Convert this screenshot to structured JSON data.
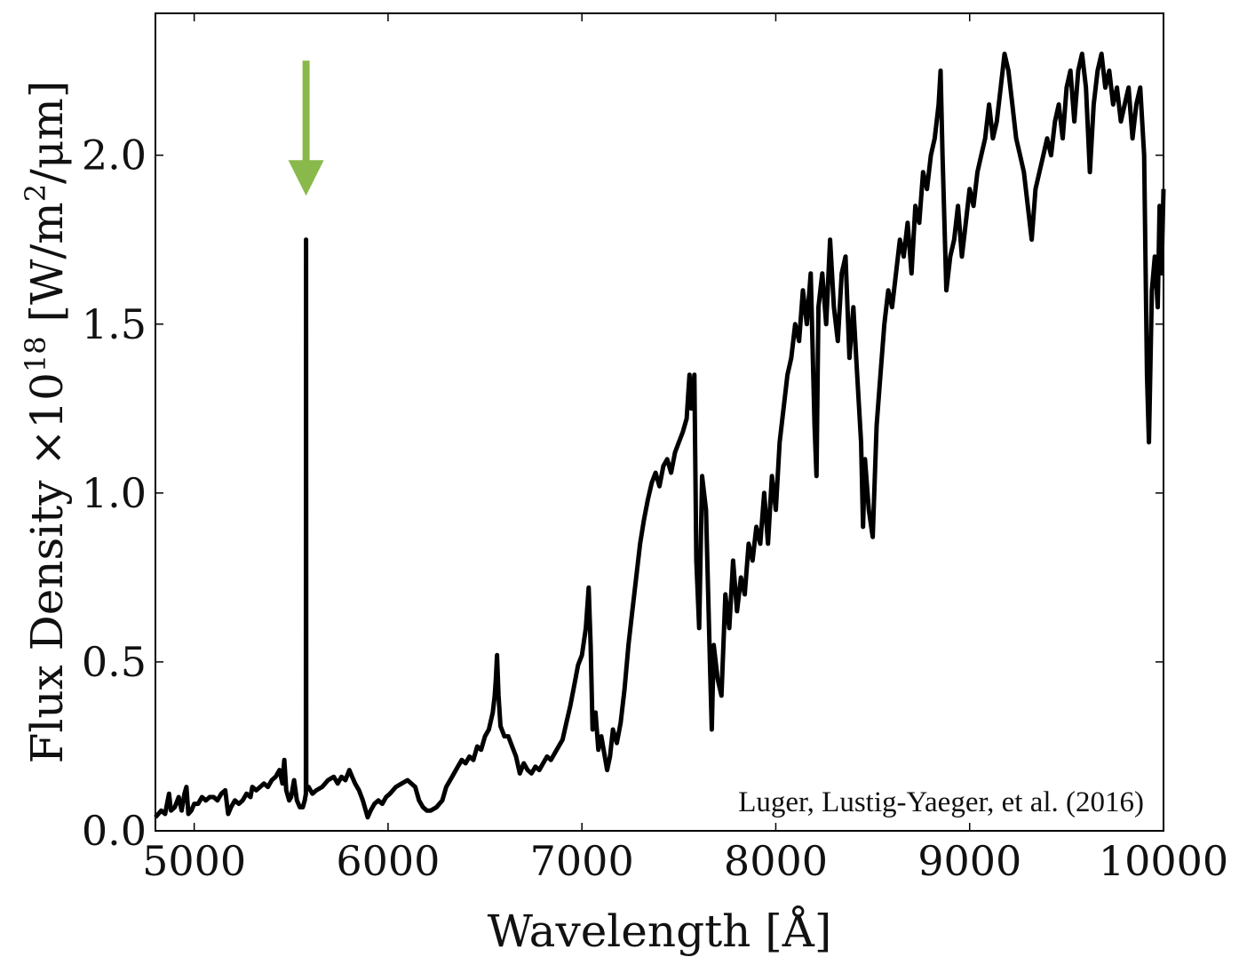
{
  "chart_data": {
    "type": "line",
    "xlabel": "Wavelength [Å]",
    "ylabel": {
      "prefix": "Flux Density ×10",
      "exp": "18",
      "mid": " [W/m",
      "exp2": "2",
      "suffix": "/μm]"
    },
    "xlim": [
      4800,
      10000
    ],
    "ylim": [
      0.0,
      2.42
    ],
    "xticks": [
      5000,
      6000,
      7000,
      8000,
      9000,
      10000
    ],
    "xtick_labels": [
      "5000",
      "6000",
      "7000",
      "8000",
      "9000",
      "10000"
    ],
    "yticks": [
      0.0,
      0.5,
      1.0,
      1.5,
      2.0
    ],
    "ytick_labels": [
      "0.0",
      "0.5",
      "1.0",
      "1.5",
      "2.0"
    ],
    "grid": false,
    "annotation": "Luger, Lustig-Yaeger, et al. (2016)",
    "arrow": {
      "x": 5577,
      "y_tail": 2.28,
      "y_head": 1.88,
      "color": "#8ab94b"
    },
    "series": [
      {
        "color": "#000000",
        "points": [
          [
            4800,
            0.04
          ],
          [
            4830,
            0.06
          ],
          [
            4850,
            0.05
          ],
          [
            4870,
            0.11
          ],
          [
            4880,
            0.06
          ],
          [
            4900,
            0.07
          ],
          [
            4920,
            0.1
          ],
          [
            4935,
            0.06
          ],
          [
            4950,
            0.11
          ],
          [
            4960,
            0.13
          ],
          [
            4970,
            0.05
          ],
          [
            4985,
            0.06
          ],
          [
            5000,
            0.08
          ],
          [
            5020,
            0.08
          ],
          [
            5040,
            0.1
          ],
          [
            5060,
            0.09
          ],
          [
            5080,
            0.1
          ],
          [
            5100,
            0.1
          ],
          [
            5120,
            0.09
          ],
          [
            5140,
            0.11
          ],
          [
            5160,
            0.12
          ],
          [
            5175,
            0.05
          ],
          [
            5190,
            0.07
          ],
          [
            5210,
            0.09
          ],
          [
            5230,
            0.08
          ],
          [
            5250,
            0.09
          ],
          [
            5270,
            0.11
          ],
          [
            5290,
            0.1
          ],
          [
            5300,
            0.13
          ],
          [
            5320,
            0.12
          ],
          [
            5340,
            0.13
          ],
          [
            5360,
            0.14
          ],
          [
            5380,
            0.13
          ],
          [
            5400,
            0.15
          ],
          [
            5420,
            0.16
          ],
          [
            5440,
            0.18
          ],
          [
            5455,
            0.14
          ],
          [
            5465,
            0.21
          ],
          [
            5475,
            0.12
          ],
          [
            5490,
            0.09
          ],
          [
            5500,
            0.1
          ],
          [
            5515,
            0.15
          ],
          [
            5530,
            0.09
          ],
          [
            5545,
            0.07
          ],
          [
            5560,
            0.07
          ],
          [
            5570,
            0.09
          ],
          [
            5576,
            0.11
          ],
          [
            5577,
            1.75
          ],
          [
            5578,
            0.12
          ],
          [
            5590,
            0.13
          ],
          [
            5610,
            0.11
          ],
          [
            5630,
            0.12
          ],
          [
            5660,
            0.13
          ],
          [
            5690,
            0.15
          ],
          [
            5720,
            0.16
          ],
          [
            5740,
            0.14
          ],
          [
            5760,
            0.16
          ],
          [
            5780,
            0.15
          ],
          [
            5800,
            0.18
          ],
          [
            5815,
            0.16
          ],
          [
            5830,
            0.14
          ],
          [
            5850,
            0.12
          ],
          [
            5870,
            0.09
          ],
          [
            5885,
            0.06
          ],
          [
            5895,
            0.04
          ],
          [
            5910,
            0.06
          ],
          [
            5930,
            0.08
          ],
          [
            5950,
            0.09
          ],
          [
            5970,
            0.08
          ],
          [
            5990,
            0.1
          ],
          [
            6010,
            0.11
          ],
          [
            6040,
            0.13
          ],
          [
            6070,
            0.14
          ],
          [
            6100,
            0.15
          ],
          [
            6120,
            0.14
          ],
          [
            6140,
            0.13
          ],
          [
            6160,
            0.09
          ],
          [
            6180,
            0.07
          ],
          [
            6200,
            0.06
          ],
          [
            6220,
            0.06
          ],
          [
            6250,
            0.07
          ],
          [
            6280,
            0.09
          ],
          [
            6300,
            0.13
          ],
          [
            6330,
            0.16
          ],
          [
            6360,
            0.19
          ],
          [
            6380,
            0.21
          ],
          [
            6400,
            0.2
          ],
          [
            6420,
            0.22
          ],
          [
            6440,
            0.21
          ],
          [
            6460,
            0.25
          ],
          [
            6480,
            0.24
          ],
          [
            6500,
            0.28
          ],
          [
            6520,
            0.3
          ],
          [
            6540,
            0.35
          ],
          [
            6550,
            0.4
          ],
          [
            6556,
            0.45
          ],
          [
            6562,
            0.52
          ],
          [
            6570,
            0.4
          ],
          [
            6580,
            0.31
          ],
          [
            6600,
            0.28
          ],
          [
            6620,
            0.28
          ],
          [
            6640,
            0.25
          ],
          [
            6660,
            0.22
          ],
          [
            6680,
            0.17
          ],
          [
            6700,
            0.2
          ],
          [
            6720,
            0.18
          ],
          [
            6740,
            0.17
          ],
          [
            6760,
            0.19
          ],
          [
            6780,
            0.18
          ],
          [
            6800,
            0.2
          ],
          [
            6820,
            0.22
          ],
          [
            6840,
            0.21
          ],
          [
            6860,
            0.23
          ],
          [
            6880,
            0.25
          ],
          [
            6900,
            0.27
          ],
          [
            6920,
            0.32
          ],
          [
            6940,
            0.37
          ],
          [
            6960,
            0.43
          ],
          [
            6980,
            0.49
          ],
          [
            7000,
            0.52
          ],
          [
            7020,
            0.6
          ],
          [
            7035,
            0.72
          ],
          [
            7045,
            0.55
          ],
          [
            7055,
            0.3
          ],
          [
            7070,
            0.35
          ],
          [
            7085,
            0.24
          ],
          [
            7100,
            0.28
          ],
          [
            7115,
            0.23
          ],
          [
            7130,
            0.18
          ],
          [
            7145,
            0.22
          ],
          [
            7160,
            0.3
          ],
          [
            7180,
            0.26
          ],
          [
            7200,
            0.32
          ],
          [
            7220,
            0.42
          ],
          [
            7240,
            0.55
          ],
          [
            7260,
            0.65
          ],
          [
            7280,
            0.75
          ],
          [
            7300,
            0.85
          ],
          [
            7320,
            0.92
          ],
          [
            7340,
            0.98
          ],
          [
            7360,
            1.03
          ],
          [
            7380,
            1.06
          ],
          [
            7400,
            1.02
          ],
          [
            7420,
            1.08
          ],
          [
            7440,
            1.1
          ],
          [
            7460,
            1.06
          ],
          [
            7480,
            1.12
          ],
          [
            7500,
            1.15
          ],
          [
            7520,
            1.18
          ],
          [
            7540,
            1.22
          ],
          [
            7555,
            1.35
          ],
          [
            7565,
            1.25
          ],
          [
            7580,
            1.35
          ],
          [
            7590,
            0.8
          ],
          [
            7605,
            0.6
          ],
          [
            7620,
            1.05
          ],
          [
            7640,
            0.95
          ],
          [
            7660,
            0.5
          ],
          [
            7670,
            0.3
          ],
          [
            7680,
            0.55
          ],
          [
            7700,
            0.45
          ],
          [
            7720,
            0.4
          ],
          [
            7740,
            0.7
          ],
          [
            7760,
            0.6
          ],
          [
            7780,
            0.8
          ],
          [
            7800,
            0.65
          ],
          [
            7820,
            0.75
          ],
          [
            7840,
            0.7
          ],
          [
            7860,
            0.85
          ],
          [
            7880,
            0.8
          ],
          [
            7900,
            0.9
          ],
          [
            7920,
            0.85
          ],
          [
            7940,
            1.0
          ],
          [
            7960,
            0.85
          ],
          [
            7980,
            1.05
          ],
          [
            8000,
            0.95
          ],
          [
            8020,
            1.15
          ],
          [
            8040,
            1.25
          ],
          [
            8060,
            1.35
          ],
          [
            8080,
            1.4
          ],
          [
            8100,
            1.5
          ],
          [
            8120,
            1.45
          ],
          [
            8140,
            1.6
          ],
          [
            8160,
            1.5
          ],
          [
            8180,
            1.65
          ],
          [
            8200,
            1.2
          ],
          [
            8210,
            1.05
          ],
          [
            8220,
            1.55
          ],
          [
            8240,
            1.65
          ],
          [
            8260,
            1.5
          ],
          [
            8280,
            1.75
          ],
          [
            8300,
            1.55
          ],
          [
            8320,
            1.45
          ],
          [
            8340,
            1.65
          ],
          [
            8360,
            1.7
          ],
          [
            8380,
            1.4
          ],
          [
            8400,
            1.55
          ],
          [
            8420,
            1.35
          ],
          [
            8440,
            1.15
          ],
          [
            8450,
            0.9
          ],
          [
            8460,
            1.1
          ],
          [
            8480,
            0.95
          ],
          [
            8500,
            0.87
          ],
          [
            8520,
            1.2
          ],
          [
            8540,
            1.35
          ],
          [
            8560,
            1.5
          ],
          [
            8580,
            1.6
          ],
          [
            8600,
            1.55
          ],
          [
            8620,
            1.65
          ],
          [
            8640,
            1.75
          ],
          [
            8660,
            1.7
          ],
          [
            8680,
            1.8
          ],
          [
            8700,
            1.65
          ],
          [
            8720,
            1.85
          ],
          [
            8740,
            1.8
          ],
          [
            8760,
            1.95
          ],
          [
            8780,
            1.9
          ],
          [
            8800,
            2.0
          ],
          [
            8820,
            2.05
          ],
          [
            8840,
            2.15
          ],
          [
            8850,
            2.25
          ],
          [
            8860,
            2.0
          ],
          [
            8880,
            1.6
          ],
          [
            8900,
            1.7
          ],
          [
            8920,
            1.75
          ],
          [
            8940,
            1.85
          ],
          [
            8960,
            1.7
          ],
          [
            8980,
            1.8
          ],
          [
            9000,
            1.9
          ],
          [
            9020,
            1.85
          ],
          [
            9040,
            1.95
          ],
          [
            9060,
            2.0
          ],
          [
            9080,
            2.05
          ],
          [
            9100,
            2.15
          ],
          [
            9120,
            2.05
          ],
          [
            9140,
            2.1
          ],
          [
            9160,
            2.2
          ],
          [
            9180,
            2.3
          ],
          [
            9200,
            2.25
          ],
          [
            9220,
            2.15
          ],
          [
            9240,
            2.05
          ],
          [
            9260,
            2.0
          ],
          [
            9280,
            1.95
          ],
          [
            9300,
            1.85
          ],
          [
            9320,
            1.75
          ],
          [
            9340,
            1.9
          ],
          [
            9360,
            1.95
          ],
          [
            9380,
            2.0
          ],
          [
            9400,
            2.05
          ],
          [
            9420,
            2.0
          ],
          [
            9440,
            2.1
          ],
          [
            9460,
            2.15
          ],
          [
            9480,
            2.05
          ],
          [
            9500,
            2.2
          ],
          [
            9520,
            2.25
          ],
          [
            9540,
            2.1
          ],
          [
            9560,
            2.25
          ],
          [
            9580,
            2.3
          ],
          [
            9600,
            2.2
          ],
          [
            9620,
            1.95
          ],
          [
            9640,
            2.15
          ],
          [
            9660,
            2.25
          ],
          [
            9680,
            2.3
          ],
          [
            9700,
            2.2
          ],
          [
            9720,
            2.25
          ],
          [
            9740,
            2.15
          ],
          [
            9760,
            2.2
          ],
          [
            9780,
            2.1
          ],
          [
            9800,
            2.15
          ],
          [
            9820,
            2.2
          ],
          [
            9840,
            2.05
          ],
          [
            9860,
            2.15
          ],
          [
            9880,
            2.2
          ],
          [
            9900,
            2.0
          ],
          [
            9915,
            1.35
          ],
          [
            9925,
            1.15
          ],
          [
            9940,
            1.6
          ],
          [
            9955,
            1.7
          ],
          [
            9970,
            1.55
          ],
          [
            9980,
            1.85
          ],
          [
            9990,
            1.65
          ],
          [
            10000,
            1.9
          ]
        ]
      }
    ]
  }
}
